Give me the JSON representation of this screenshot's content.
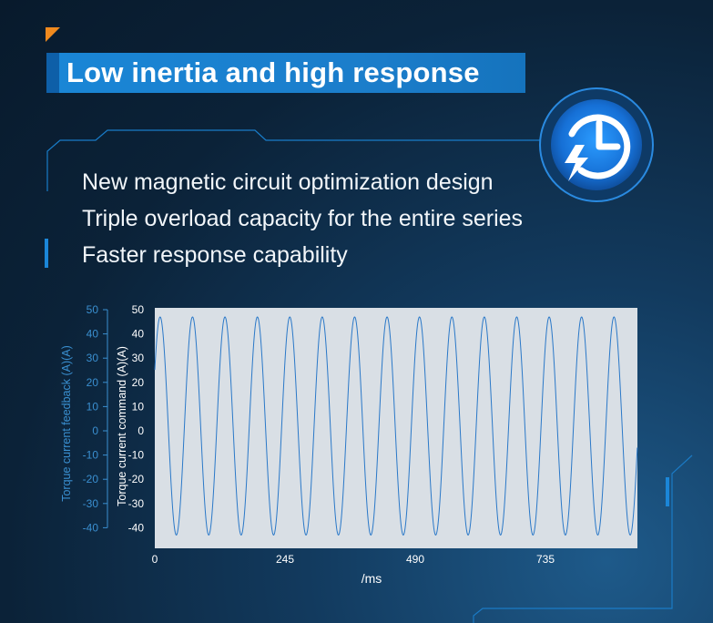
{
  "header": {
    "title": "Low inertia and high response"
  },
  "features": [
    "New magnetic circuit optimization design",
    "Triple overload capacity for the entire series",
    "Faster response capability"
  ],
  "badge": {
    "icon": "clock-lightning-icon"
  },
  "colors": {
    "accent": "#1a86d6",
    "corner": "#f08a1e",
    "signal": "#2a78c8",
    "plot_bg": "#d9dfe5"
  },
  "chart_data": {
    "type": "line",
    "xlabel": "/ms",
    "x_ticks": [
      "0",
      "245",
      "490",
      "735"
    ],
    "xlim": [
      0,
      915
    ],
    "ylabel_left": "Torque current feedback (A)(A)",
    "ylabel_right": "Torque current command (A)(A)",
    "y_ticks": [
      "50",
      "40",
      "30",
      "20",
      "10",
      "0",
      "-10",
      "-20",
      "-30",
      "-40"
    ],
    "ylim": [
      -45,
      50
    ],
    "grid": false,
    "series": [
      {
        "wave": "sine",
        "amplitude": 45,
        "offset": 2,
        "period_ms": 61,
        "phase_peak_ms": 10,
        "end_ms": 915
      }
    ]
  }
}
